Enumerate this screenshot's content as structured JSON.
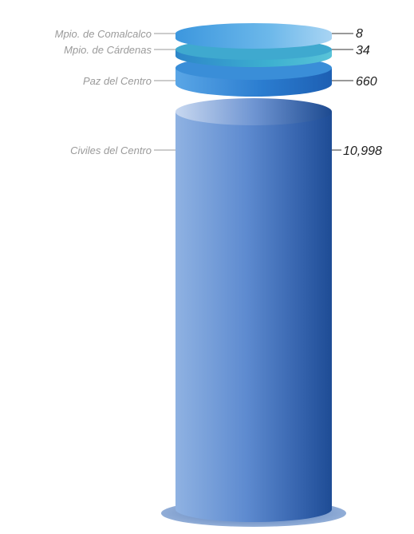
{
  "chart_data": {
    "type": "stacked-cylinder",
    "title": "",
    "categories": [
      "Mpio. de Comalcalco",
      "Mpio. de Cárdenas",
      "Paz del Centro",
      "Civiles del Centro"
    ],
    "values": [
      "8",
      "34",
      "660",
      "10,998"
    ],
    "colors": {
      "Mpio. de Comalcalco": "#4aa6e0",
      "Mpio. de Cárdenas": "#3aa3c4",
      "Paz del Centro": "#2c7fcc",
      "Civiles del Centro": "#2f5ea8"
    },
    "legend": "labels left of each segment, values right",
    "grid": false
  }
}
